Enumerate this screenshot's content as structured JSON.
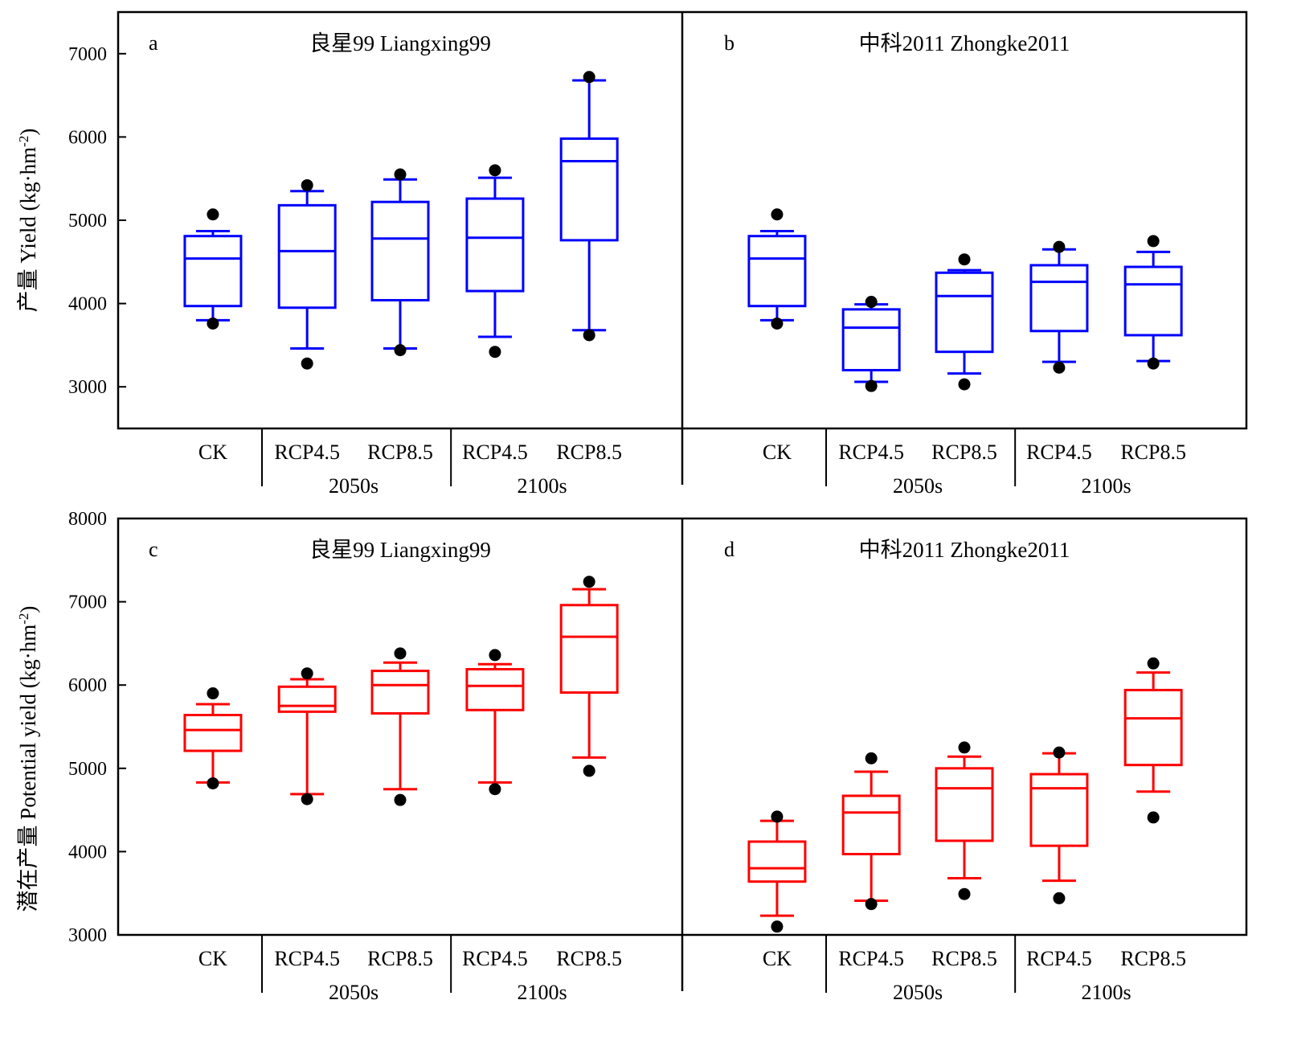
{
  "chart_data": [
    {
      "type": "box",
      "panel": "a",
      "title": "良星99 Liangxing99",
      "color": "#0000ff",
      "ylabel": "产量 Yield (kg·hm-2)",
      "ylim": [
        2500,
        7500
      ],
      "yticks": [
        3000,
        4000,
        5000,
        6000,
        7000
      ],
      "categories": [
        "CK",
        "RCP4.5",
        "RCP8.5",
        "RCP4.5",
        "RCP8.5"
      ],
      "groups": [
        {
          "label": "2050s",
          "from": 1,
          "to": 2
        },
        {
          "label": "2100s",
          "from": 3,
          "to": 4
        }
      ],
      "boxes": [
        {
          "whisker_low": 3800,
          "q1": 3970,
          "median": 4540,
          "q3": 4810,
          "whisker_high": 4870,
          "outliers": [
            3760,
            5070
          ]
        },
        {
          "whisker_low": 3460,
          "q1": 3950,
          "median": 4630,
          "q3": 5180,
          "whisker_high": 5350,
          "outliers": [
            3280,
            5420
          ]
        },
        {
          "whisker_low": 3460,
          "q1": 4040,
          "median": 4780,
          "q3": 5220,
          "whisker_high": 5490,
          "outliers": [
            3440,
            5550
          ]
        },
        {
          "whisker_low": 3600,
          "q1": 4150,
          "median": 4790,
          "q3": 5260,
          "whisker_high": 5510,
          "outliers": [
            3420,
            5600
          ]
        },
        {
          "whisker_low": 3680,
          "q1": 4760,
          "median": 5710,
          "q3": 5980,
          "whisker_high": 6680,
          "outliers": [
            3620,
            6720
          ]
        }
      ]
    },
    {
      "type": "box",
      "panel": "b",
      "title": "中科2011 Zhongke2011",
      "color": "#0000ff",
      "ylim": [
        2500,
        7500
      ],
      "categories": [
        "CK",
        "RCP4.5",
        "RCP8.5",
        "RCP4.5",
        "RCP8.5"
      ],
      "groups": [
        {
          "label": "2050s",
          "from": 1,
          "to": 2
        },
        {
          "label": "2100s",
          "from": 3,
          "to": 4
        }
      ],
      "boxes": [
        {
          "whisker_low": 3800,
          "q1": 3970,
          "median": 4540,
          "q3": 4810,
          "whisker_high": 4870,
          "outliers": [
            3760,
            5070
          ]
        },
        {
          "whisker_low": 3060,
          "q1": 3200,
          "median": 3710,
          "q3": 3930,
          "whisker_high": 3990,
          "outliers": [
            3010,
            4020
          ]
        },
        {
          "whisker_low": 3160,
          "q1": 3420,
          "median": 4090,
          "q3": 4370,
          "whisker_high": 4400,
          "outliers": [
            3030,
            4530
          ]
        },
        {
          "whisker_low": 3300,
          "q1": 3670,
          "median": 4260,
          "q3": 4460,
          "whisker_high": 4650,
          "outliers": [
            3230,
            4680
          ]
        },
        {
          "whisker_low": 3310,
          "q1": 3620,
          "median": 4230,
          "q3": 4440,
          "whisker_high": 4620,
          "outliers": [
            3280,
            4750
          ]
        }
      ]
    },
    {
      "type": "box",
      "panel": "c",
      "title": "良星99 Liangxing99",
      "color": "#ff0000",
      "ylabel": "潜在产量 Potential yield (kg·hm-2)",
      "ylim": [
        3000,
        8000
      ],
      "yticks": [
        3000,
        4000,
        5000,
        6000,
        7000,
        8000
      ],
      "categories": [
        "CK",
        "RCP4.5",
        "RCP8.5",
        "RCP4.5",
        "RCP8.5"
      ],
      "groups": [
        {
          "label": "2050s",
          "from": 1,
          "to": 2
        },
        {
          "label": "2100s",
          "from": 3,
          "to": 4
        }
      ],
      "boxes": [
        {
          "whisker_low": 4830,
          "q1": 5210,
          "median": 5460,
          "q3": 5640,
          "whisker_high": 5770,
          "outliers": [
            4820,
            5900
          ]
        },
        {
          "whisker_low": 4690,
          "q1": 5680,
          "median": 5750,
          "q3": 5980,
          "whisker_high": 6070,
          "outliers": [
            4630,
            6140
          ]
        },
        {
          "whisker_low": 4750,
          "q1": 5660,
          "median": 6000,
          "q3": 6170,
          "whisker_high": 6270,
          "outliers": [
            4620,
            6380
          ]
        },
        {
          "whisker_low": 4830,
          "q1": 5700,
          "median": 5990,
          "q3": 6190,
          "whisker_high": 6250,
          "outliers": [
            4750,
            6360
          ]
        },
        {
          "whisker_low": 5130,
          "q1": 5910,
          "median": 6580,
          "q3": 6960,
          "whisker_high": 7150,
          "outliers": [
            4970,
            7240
          ]
        }
      ]
    },
    {
      "type": "box",
      "panel": "d",
      "title": "中科2011 Zhongke2011",
      "color": "#ff0000",
      "ylim": [
        3000,
        8000
      ],
      "categories": [
        "CK",
        "RCP4.5",
        "RCP8.5",
        "RCP4.5",
        "RCP8.5"
      ],
      "groups": [
        {
          "label": "2050s",
          "from": 1,
          "to": 2
        },
        {
          "label": "2100s",
          "from": 3,
          "to": 4
        }
      ],
      "boxes": [
        {
          "whisker_low": 3230,
          "q1": 3640,
          "median": 3800,
          "q3": 4120,
          "whisker_high": 4370,
          "outliers": [
            3100,
            4420
          ]
        },
        {
          "whisker_low": 3410,
          "q1": 3970,
          "median": 4470,
          "q3": 4670,
          "whisker_high": 4960,
          "outliers": [
            3370,
            5120
          ]
        },
        {
          "whisker_low": 3680,
          "q1": 4130,
          "median": 4760,
          "q3": 5000,
          "whisker_high": 5140,
          "outliers": [
            3490,
            5250
          ]
        },
        {
          "whisker_low": 3650,
          "q1": 4070,
          "median": 4760,
          "q3": 4930,
          "whisker_high": 5180,
          "outliers": [
            3440,
            5190
          ]
        },
        {
          "whisker_low": 4720,
          "q1": 5040,
          "median": 5600,
          "q3": 5940,
          "whisker_high": 6150,
          "outliers": [
            4410,
            6260
          ]
        }
      ]
    }
  ]
}
